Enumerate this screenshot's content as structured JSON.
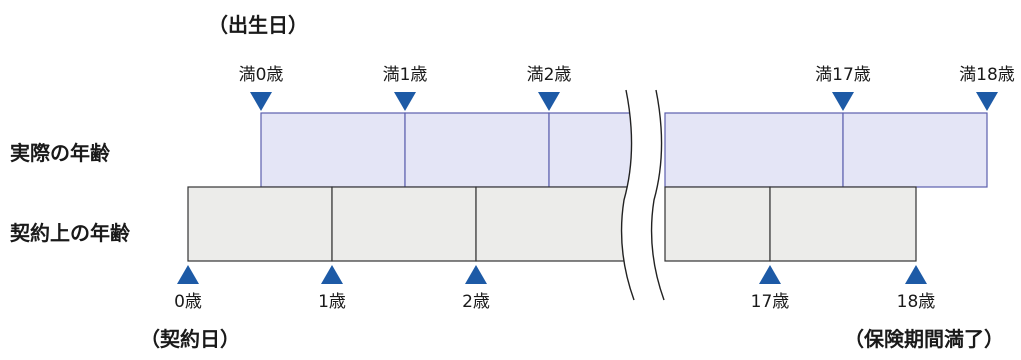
{
  "notes": {
    "birth_day": "（出生日）",
    "contract_day": "（契約日）",
    "maturity": "（保険期間満了）"
  },
  "rows": {
    "actual_age": "実際の年齢",
    "contract_age": "契約上の年齢"
  },
  "actual_markers": [
    "満0歳",
    "満1歳",
    "満2歳",
    "満17歳",
    "満18歳"
  ],
  "contract_markers": [
    "0歳",
    "1歳",
    "2歳",
    "17歳",
    "18歳"
  ],
  "colors": {
    "marker": "#1d5aa6",
    "actual_fill": "#e4e5f6",
    "actual_stroke": "#5b5fae",
    "contract_fill": "#ececea",
    "contract_stroke": "#333333"
  }
}
